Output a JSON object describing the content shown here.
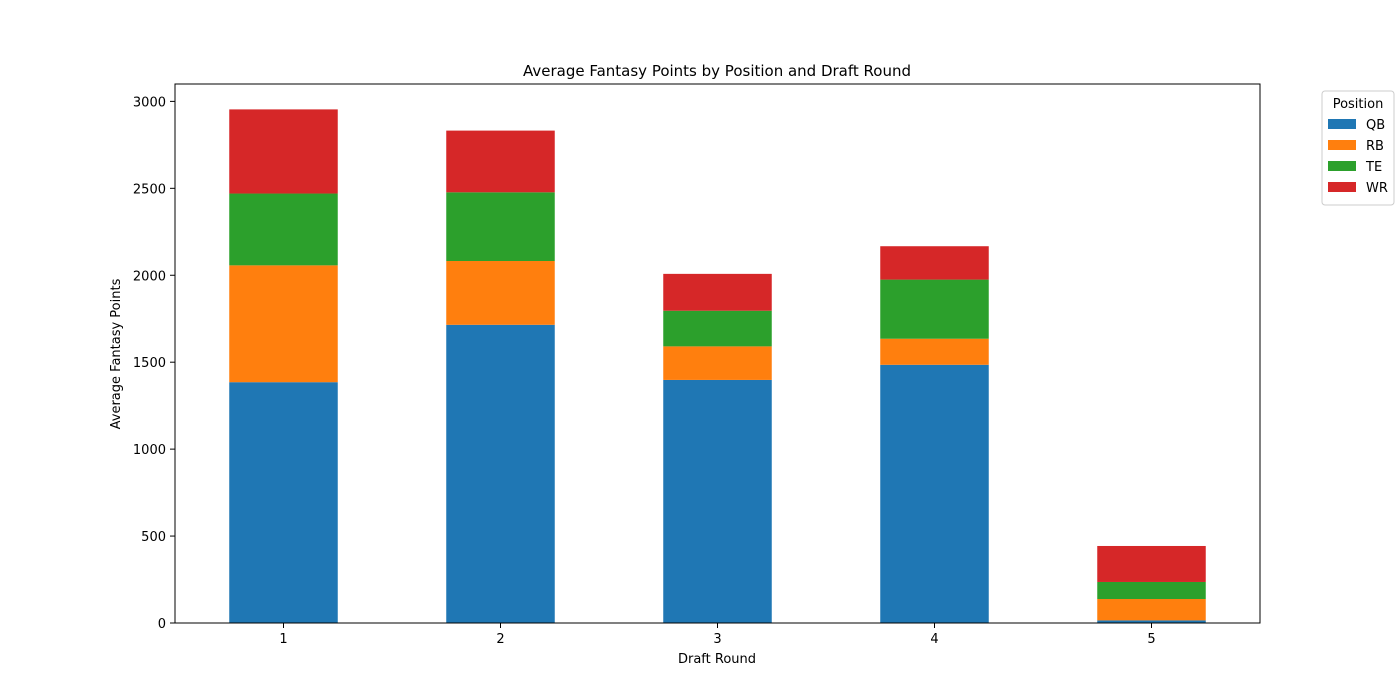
{
  "chart_data": {
    "type": "bar",
    "stacked": true,
    "title": "Average Fantasy Points by Position and Draft Round",
    "xlabel": "Draft Round",
    "ylabel": "Average Fantasy Points",
    "categories": [
      "1",
      "2",
      "3",
      "4",
      "5"
    ],
    "ylim": [
      0,
      3100
    ],
    "yticks": [
      0,
      500,
      1000,
      1500,
      2000,
      2500,
      3000
    ],
    "legend_title": "Position",
    "legend_placement": "outside-top-right",
    "series": [
      {
        "name": "QB",
        "color": "#1f77b4",
        "values": [
          1385,
          1715,
          1398,
          1485,
          15
        ]
      },
      {
        "name": "RB",
        "color": "#ff7f0e",
        "values": [
          672,
          367,
          193,
          150,
          123
        ]
      },
      {
        "name": "TE",
        "color": "#2ca02c",
        "values": [
          413,
          395,
          205,
          340,
          98
        ]
      },
      {
        "name": "WR",
        "color": "#d62728",
        "values": [
          484,
          355,
          212,
          192,
          207
        ]
      }
    ]
  }
}
